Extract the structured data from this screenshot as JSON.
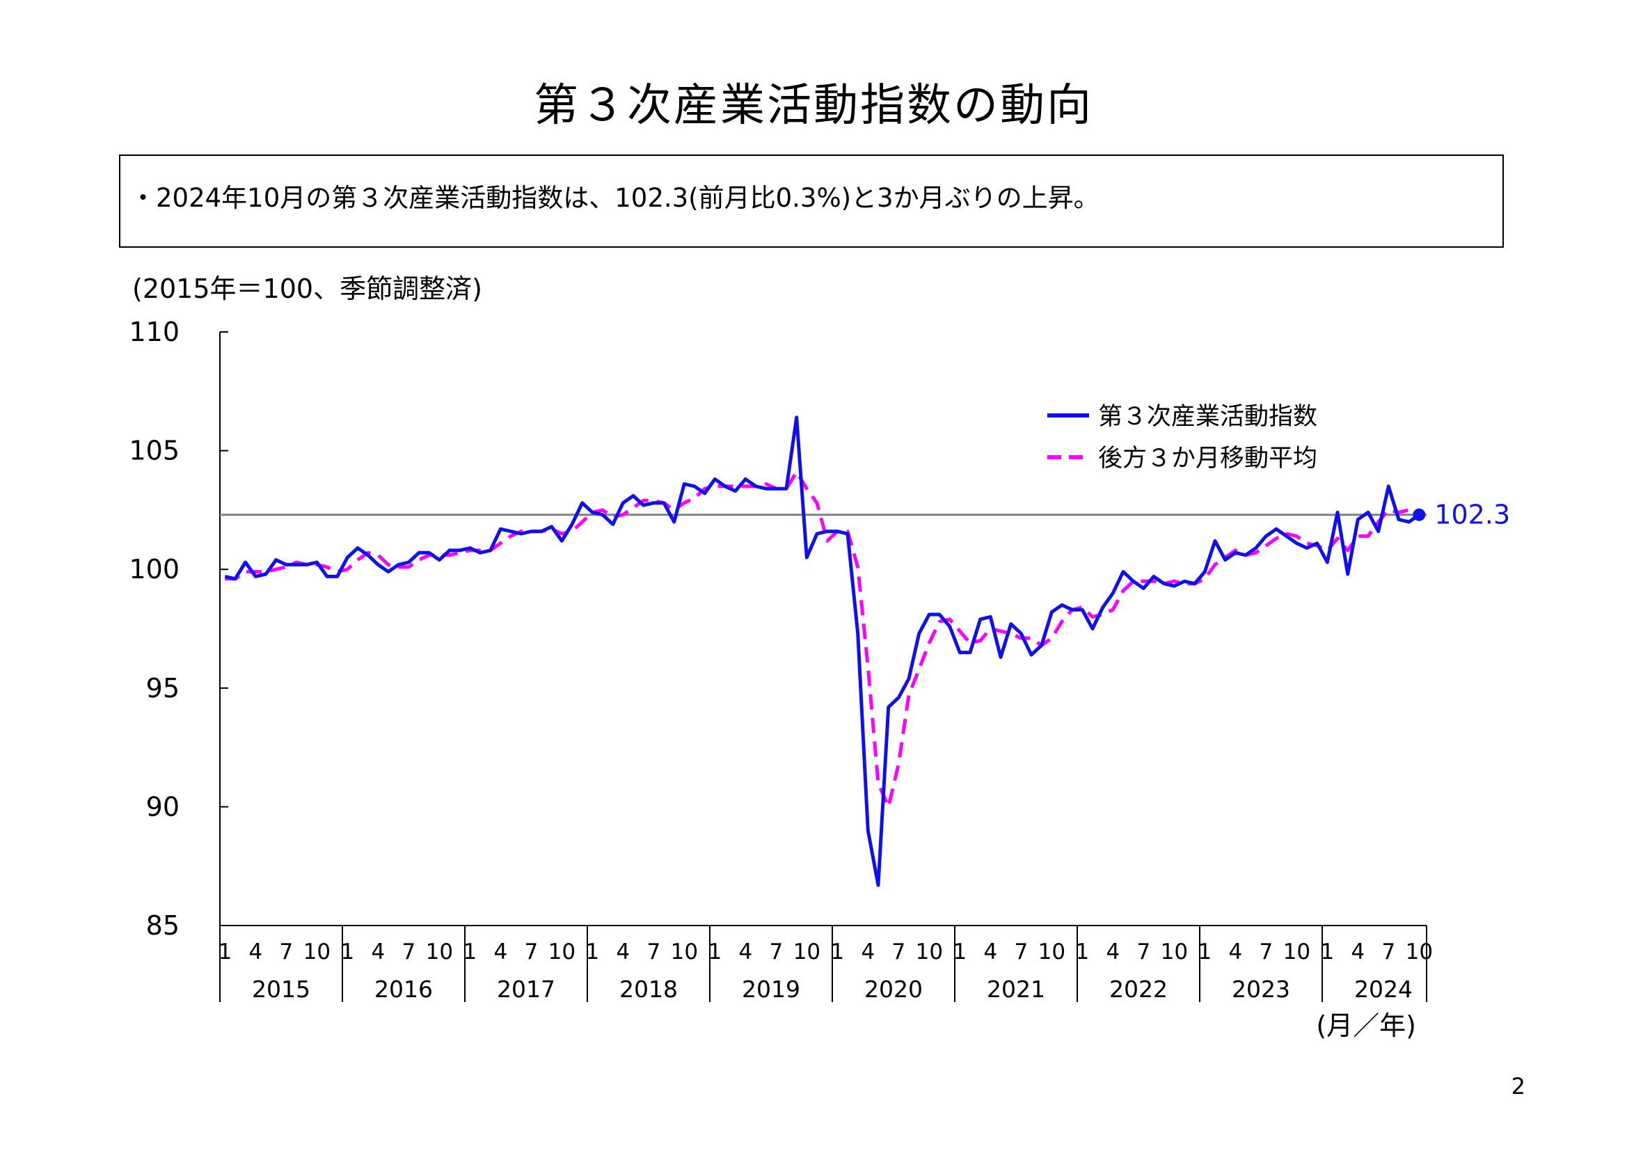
{
  "page": {
    "title": "第３次産業活動指数の動向",
    "summary": "・2024年10月の第３次産業活動指数は、102.3(前月比0.3%)と3か月ぶりの上昇。",
    "page_number": "2"
  },
  "chart_data": {
    "type": "line",
    "unit_note": "(2015年＝100、季節調整済)",
    "xlabel": "(月／年)",
    "ylim": [
      85,
      110
    ],
    "yticks": [
      85,
      90,
      95,
      100,
      105,
      110
    ],
    "month_ticks": [
      "1",
      "4",
      "7",
      "10"
    ],
    "years": [
      "2015",
      "2016",
      "2017",
      "2018",
      "2019",
      "2020",
      "2021",
      "2022",
      "2023",
      "2024"
    ],
    "x_start": "2015-01",
    "x_end": "2024-10",
    "reference_line": 102.3,
    "last_label": "102.3",
    "series": [
      {
        "name": "第３次産業活動指数",
        "color": "#1010ee",
        "style": "solid",
        "values": [
          99.7,
          99.6,
          100.3,
          99.7,
          99.8,
          100.4,
          100.2,
          100.2,
          100.2,
          100.3,
          99.7,
          99.7,
          100.5,
          100.9,
          100.6,
          100.2,
          99.9,
          100.2,
          100.3,
          100.7,
          100.7,
          100.4,
          100.8,
          100.8,
          100.9,
          100.7,
          100.8,
          101.7,
          101.6,
          101.5,
          101.6,
          101.6,
          101.8,
          101.2,
          101.9,
          102.8,
          102.4,
          102.3,
          101.9,
          102.8,
          103.1,
          102.7,
          102.8,
          102.8,
          102.0,
          103.6,
          103.5,
          103.2,
          103.8,
          103.5,
          103.3,
          103.8,
          103.5,
          103.4,
          103.4,
          103.4,
          106.4,
          100.5,
          101.5,
          101.6,
          101.6,
          101.5,
          97.3,
          89.0,
          86.7,
          94.2,
          94.6,
          95.4,
          97.3,
          98.1,
          98.1,
          97.6,
          96.5,
          96.5,
          97.9,
          98.0,
          96.3,
          97.7,
          97.3,
          96.4,
          96.8,
          98.2,
          98.5,
          98.3,
          98.3,
          97.5,
          98.4,
          99.0,
          99.9,
          99.5,
          99.2,
          99.7,
          99.4,
          99.3,
          99.5,
          99.4,
          99.9,
          101.2,
          100.4,
          100.7,
          100.6,
          100.9,
          101.4,
          101.7,
          101.4,
          101.1,
          100.9,
          101.1,
          100.3,
          102.4,
          99.8,
          102.1,
          102.4,
          101.6,
          103.5,
          102.1,
          102.0,
          102.3
        ]
      },
      {
        "name": "後方３か月移動平均",
        "color": "#ff00ff",
        "style": "dashed",
        "values": [
          99.6,
          99.6,
          99.9,
          99.9,
          99.9,
          100.0,
          100.1,
          100.3,
          100.2,
          100.2,
          100.1,
          99.9,
          100.0,
          100.4,
          100.7,
          100.6,
          100.2,
          100.1,
          100.1,
          100.4,
          100.6,
          100.6,
          100.6,
          100.7,
          100.8,
          100.8,
          100.8,
          101.1,
          101.4,
          101.6,
          101.6,
          101.6,
          101.7,
          101.5,
          101.6,
          102.0,
          102.4,
          102.5,
          102.2,
          102.3,
          102.6,
          102.9,
          102.9,
          102.8,
          102.5,
          102.8,
          103.0,
          103.4,
          103.5,
          103.5,
          103.5,
          103.5,
          103.5,
          103.6,
          103.4,
          103.4,
          104.1,
          103.4,
          102.8,
          101.2,
          101.6,
          101.6,
          100.1,
          95.9,
          91.0,
          90.0,
          91.8,
          94.7,
          95.8,
          96.9,
          97.8,
          97.9,
          97.4,
          96.9,
          97.0,
          97.5,
          97.4,
          97.3,
          97.1,
          97.1,
          96.8,
          97.1,
          97.8,
          98.3,
          98.4,
          98.0,
          98.1,
          98.3,
          99.1,
          99.5,
          99.5,
          99.5,
          99.4,
          99.5,
          99.4,
          99.4,
          99.6,
          100.2,
          100.5,
          100.8,
          100.6,
          100.7,
          101.0,
          101.3,
          101.5,
          101.4,
          101.1,
          101.0,
          100.8,
          101.3,
          100.8,
          101.4,
          101.4,
          102.0,
          102.5,
          102.4,
          102.5,
          102.1
        ]
      }
    ]
  }
}
